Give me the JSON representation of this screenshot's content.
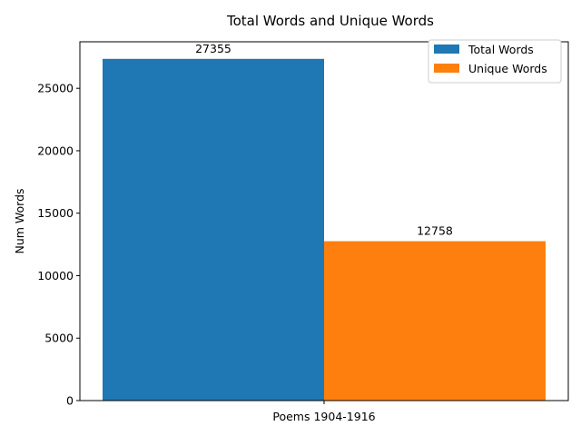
{
  "chart_data": {
    "type": "bar",
    "title": "Total Words and Unique Words",
    "ylabel": "Num Words",
    "xlabel": "",
    "categories": [
      "Poems 1904-1916"
    ],
    "series": [
      {
        "name": "Total Words",
        "values": [
          27355
        ],
        "color": "#1f77b4"
      },
      {
        "name": "Unique Words",
        "values": [
          12758
        ],
        "color": "#ff7f0e"
      }
    ],
    "ylim": [
      0,
      28722.75
    ],
    "yticks": [
      0,
      5000,
      10000,
      15000,
      20000,
      25000
    ],
    "data_labels": [
      "27355",
      "12758"
    ],
    "legend_position": "top-right",
    "grid": false
  }
}
